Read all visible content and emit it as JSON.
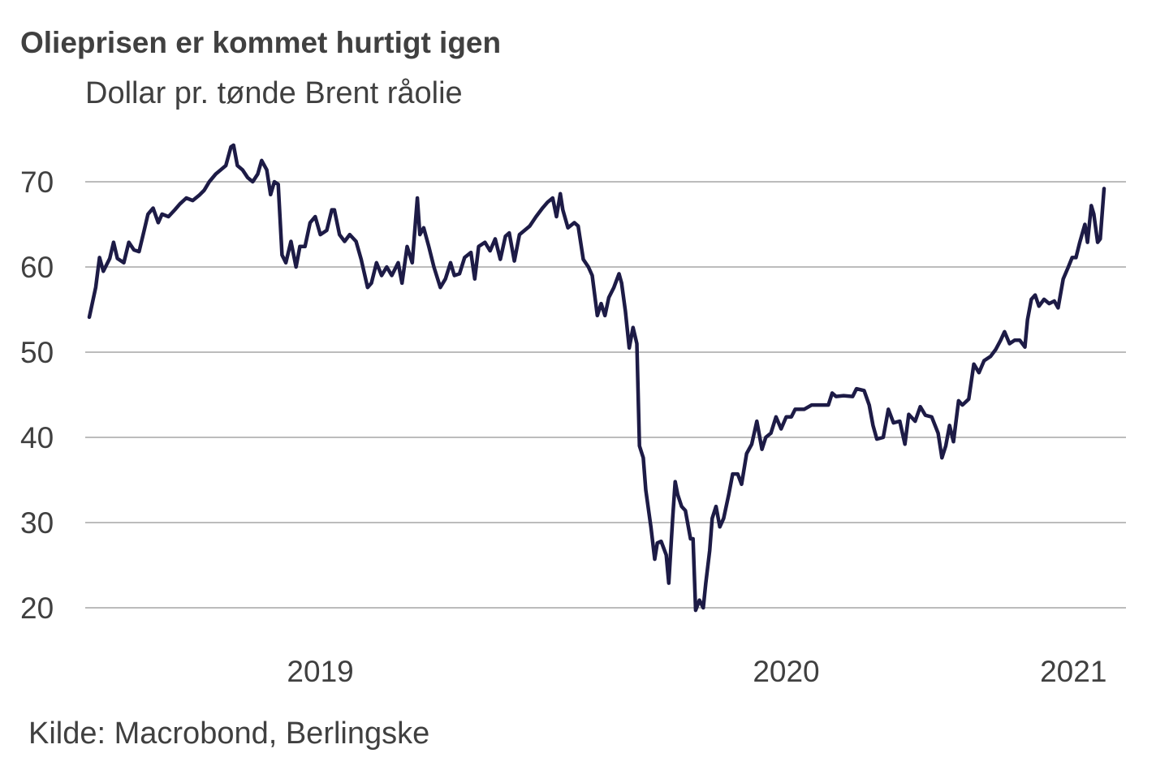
{
  "chart_data": {
    "type": "line",
    "title": "Olieprisen er kommet hurtigt igen",
    "subtitle": "Dollar pr. tønde Brent råolie",
    "source": "Kilde: Macrobond, Berlingske",
    "xlabel": "",
    "ylabel": "Dollar pr. tønde",
    "x_unit": "days since 1 Jan 2019",
    "xlim": [
      0,
      795
    ],
    "ylim": [
      20,
      70
    ],
    "yticks": [
      20,
      30,
      40,
      50,
      60,
      70
    ],
    "ytick_labels": [
      "20",
      "30",
      "40",
      "50",
      "60",
      "70"
    ],
    "xticks": [
      {
        "label": "2019",
        "day": 181
      },
      {
        "label": "2020",
        "day": 546
      },
      {
        "label": "2021",
        "day": 771
      }
    ],
    "grid": true,
    "series": [
      {
        "name": "Brent",
        "color": "#1d1b46",
        "points": [
          [
            0,
            54.1
          ],
          [
            5,
            57.6
          ],
          [
            8,
            61.1
          ],
          [
            11,
            59.5
          ],
          [
            16,
            61.0
          ],
          [
            19,
            62.9
          ],
          [
            22,
            61.0
          ],
          [
            27,
            60.5
          ],
          [
            31,
            62.9
          ],
          [
            35,
            62.0
          ],
          [
            39,
            61.8
          ],
          [
            43,
            64.3
          ],
          [
            46,
            66.2
          ],
          [
            50,
            66.9
          ],
          [
            54,
            65.2
          ],
          [
            57,
            66.2
          ],
          [
            62,
            65.9
          ],
          [
            67,
            66.7
          ],
          [
            71,
            67.4
          ],
          [
            76,
            68.1
          ],
          [
            81,
            67.8
          ],
          [
            86,
            68.4
          ],
          [
            90,
            69.0
          ],
          [
            94,
            70.0
          ],
          [
            99,
            70.9
          ],
          [
            103,
            71.4
          ],
          [
            107,
            71.9
          ],
          [
            111,
            74.1
          ],
          [
            113,
            74.3
          ],
          [
            116,
            71.9
          ],
          [
            120,
            71.4
          ],
          [
            124,
            70.5
          ],
          [
            128,
            70.0
          ],
          [
            132,
            70.9
          ],
          [
            135,
            72.5
          ],
          [
            139,
            71.4
          ],
          [
            142,
            68.5
          ],
          [
            145,
            70.0
          ],
          [
            148,
            69.7
          ],
          [
            151,
            61.4
          ],
          [
            154,
            60.5
          ],
          [
            158,
            63.0
          ],
          [
            162,
            60.0
          ],
          [
            165,
            62.4
          ],
          [
            169,
            62.4
          ],
          [
            173,
            65.2
          ],
          [
            177,
            65.9
          ],
          [
            181,
            63.8
          ],
          [
            186,
            64.3
          ],
          [
            190,
            66.7
          ],
          [
            192,
            66.7
          ],
          [
            196,
            63.8
          ],
          [
            200,
            63.0
          ],
          [
            204,
            63.8
          ],
          [
            209,
            63.0
          ],
          [
            213,
            60.9
          ],
          [
            218,
            57.6
          ],
          [
            221,
            58.1
          ],
          [
            225,
            60.5
          ],
          [
            229,
            59.0
          ],
          [
            233,
            60.0
          ],
          [
            237,
            59.0
          ],
          [
            242,
            60.5
          ],
          [
            245,
            58.1
          ],
          [
            249,
            62.4
          ],
          [
            253,
            60.5
          ],
          [
            257,
            68.1
          ],
          [
            259,
            63.8
          ],
          [
            262,
            64.6
          ],
          [
            266,
            62.4
          ],
          [
            270,
            60.0
          ],
          [
            275,
            57.6
          ],
          [
            279,
            58.6
          ],
          [
            283,
            60.5
          ],
          [
            286,
            59.0
          ],
          [
            290,
            59.2
          ],
          [
            294,
            61.1
          ],
          [
            299,
            61.7
          ],
          [
            302,
            58.6
          ],
          [
            305,
            62.4
          ],
          [
            310,
            62.9
          ],
          [
            314,
            61.9
          ],
          [
            318,
            63.3
          ],
          [
            322,
            60.9
          ],
          [
            326,
            63.6
          ],
          [
            329,
            64.0
          ],
          [
            333,
            60.7
          ],
          [
            337,
            63.8
          ],
          [
            341,
            64.3
          ],
          [
            345,
            64.8
          ],
          [
            350,
            65.9
          ],
          [
            355,
            66.9
          ],
          [
            359,
            67.6
          ],
          [
            363,
            68.1
          ],
          [
            366,
            65.9
          ],
          [
            369,
            68.6
          ],
          [
            371,
            66.7
          ],
          [
            375,
            64.6
          ],
          [
            380,
            65.2
          ],
          [
            383,
            64.8
          ],
          [
            387,
            60.9
          ],
          [
            391,
            60.0
          ],
          [
            394,
            59.0
          ],
          [
            398,
            54.3
          ],
          [
            401,
            55.7
          ],
          [
            404,
            54.3
          ],
          [
            407,
            56.4
          ],
          [
            411,
            57.6
          ],
          [
            415,
            59.2
          ],
          [
            417,
            58.1
          ],
          [
            420,
            54.8
          ],
          [
            423,
            50.5
          ],
          [
            426,
            52.9
          ],
          [
            429,
            51.0
          ],
          [
            431,
            39.0
          ],
          [
            434,
            37.6
          ],
          [
            436,
            33.8
          ],
          [
            440,
            29.5
          ],
          [
            443,
            25.7
          ],
          [
            445,
            27.6
          ],
          [
            448,
            27.8
          ],
          [
            452,
            26.2
          ],
          [
            454,
            22.9
          ],
          [
            457,
            30.5
          ],
          [
            459,
            34.8
          ],
          [
            461,
            33.3
          ],
          [
            464,
            31.9
          ],
          [
            467,
            31.4
          ],
          [
            471,
            28.1
          ],
          [
            473,
            28.1
          ],
          [
            475,
            19.7
          ],
          [
            478,
            20.9
          ],
          [
            481,
            20.0
          ],
          [
            483,
            22.9
          ],
          [
            486,
            26.7
          ],
          [
            488,
            30.5
          ],
          [
            491,
            31.9
          ],
          [
            494,
            29.5
          ],
          [
            497,
            30.5
          ],
          [
            501,
            33.3
          ],
          [
            504,
            35.7
          ],
          [
            508,
            35.7
          ],
          [
            511,
            34.5
          ],
          [
            515,
            38.1
          ],
          [
            519,
            39.2
          ],
          [
            523,
            41.9
          ],
          [
            527,
            38.6
          ],
          [
            530,
            40.0
          ],
          [
            534,
            40.5
          ],
          [
            538,
            42.4
          ],
          [
            542,
            41.0
          ],
          [
            546,
            42.4
          ],
          [
            550,
            42.4
          ],
          [
            553,
            43.3
          ],
          [
            560,
            43.3
          ],
          [
            566,
            43.8
          ],
          [
            572,
            43.8
          ],
          [
            579,
            43.8
          ],
          [
            582,
            45.2
          ],
          [
            585,
            44.8
          ],
          [
            591,
            44.9
          ],
          [
            598,
            44.8
          ],
          [
            601,
            45.7
          ],
          [
            607,
            45.5
          ],
          [
            611,
            43.8
          ],
          [
            614,
            41.4
          ],
          [
            617,
            39.8
          ],
          [
            622,
            40.0
          ],
          [
            626,
            43.3
          ],
          [
            630,
            41.7
          ],
          [
            635,
            41.9
          ],
          [
            639,
            39.2
          ],
          [
            642,
            42.7
          ],
          [
            647,
            41.9
          ],
          [
            651,
            43.6
          ],
          [
            655,
            42.6
          ],
          [
            660,
            42.4
          ],
          [
            665,
            40.5
          ],
          [
            668,
            37.6
          ],
          [
            671,
            39.0
          ],
          [
            674,
            41.4
          ],
          [
            677,
            39.5
          ],
          [
            681,
            44.3
          ],
          [
            684,
            43.8
          ],
          [
            689,
            44.5
          ],
          [
            693,
            48.6
          ],
          [
            697,
            47.6
          ],
          [
            701,
            49.0
          ],
          [
            706,
            49.5
          ],
          [
            710,
            50.3
          ],
          [
            714,
            51.4
          ],
          [
            717,
            52.4
          ],
          [
            721,
            51.0
          ],
          [
            725,
            51.4
          ],
          [
            729,
            51.4
          ],
          [
            733,
            50.6
          ],
          [
            735,
            53.8
          ],
          [
            738,
            56.2
          ],
          [
            741,
            56.7
          ],
          [
            744,
            55.4
          ],
          [
            748,
            56.2
          ],
          [
            752,
            55.7
          ],
          [
            756,
            56.0
          ],
          [
            759,
            55.2
          ],
          [
            763,
            58.6
          ],
          [
            767,
            60.0
          ],
          [
            770,
            61.1
          ],
          [
            773,
            61.1
          ],
          [
            776,
            62.9
          ],
          [
            780,
            65.0
          ],
          [
            782,
            62.9
          ],
          [
            785,
            67.2
          ],
          [
            787,
            66.2
          ],
          [
            790,
            62.9
          ],
          [
            792,
            63.3
          ],
          [
            795,
            69.2
          ]
        ]
      }
    ]
  }
}
